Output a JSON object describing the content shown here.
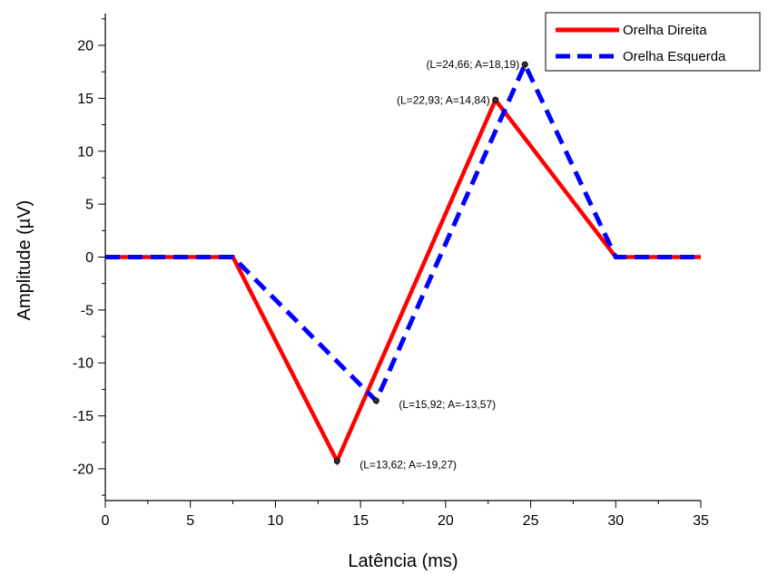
{
  "chart_data": {
    "type": "line",
    "xlabel": "Latência (ms)",
    "ylabel": "Amplitude (µV)",
    "xlim": [
      0,
      35
    ],
    "ylim": [
      -23,
      23
    ],
    "xticks": [
      0,
      5,
      10,
      15,
      20,
      25,
      30,
      35
    ],
    "yticks": [
      -20,
      -15,
      -10,
      -5,
      0,
      5,
      10,
      15,
      20
    ],
    "xtick_labels": [
      "0",
      "5",
      "10",
      "15",
      "20",
      "25",
      "30",
      "35"
    ],
    "ytick_labels": [
      "-20",
      "-15",
      "-10",
      "-5",
      "0",
      "5",
      "10",
      "15",
      "20"
    ],
    "grid": false,
    "legend_position": "top-right",
    "series": [
      {
        "name": "Orelha Direita",
        "color": "#ff0000",
        "style": "solid",
        "x": [
          0,
          7.5,
          13.62,
          22.93,
          30,
          35
        ],
        "y": [
          0,
          0,
          -19.27,
          14.84,
          0,
          0
        ]
      },
      {
        "name": "Orelha Esquerda",
        "color": "#0000ff",
        "style": "dashed",
        "x": [
          0,
          7.5,
          15.92,
          24.66,
          30,
          35
        ],
        "y": [
          0,
          0,
          -13.57,
          18.19,
          0,
          0
        ]
      }
    ],
    "annotations": [
      {
        "text": "(L=24,66; A=18,19)",
        "x": 24.66,
        "y": 18.19,
        "placement": "left"
      },
      {
        "text": "(L=22,93; A=14,84)",
        "x": 22.93,
        "y": 14.84,
        "placement": "left"
      },
      {
        "text": "(L=15,92; A=-13,57)",
        "x": 15.92,
        "y": -13.57,
        "placement": "right"
      },
      {
        "text": "(L=13,62; A=-19,27)",
        "x": 13.62,
        "y": -19.27,
        "placement": "right"
      }
    ]
  }
}
